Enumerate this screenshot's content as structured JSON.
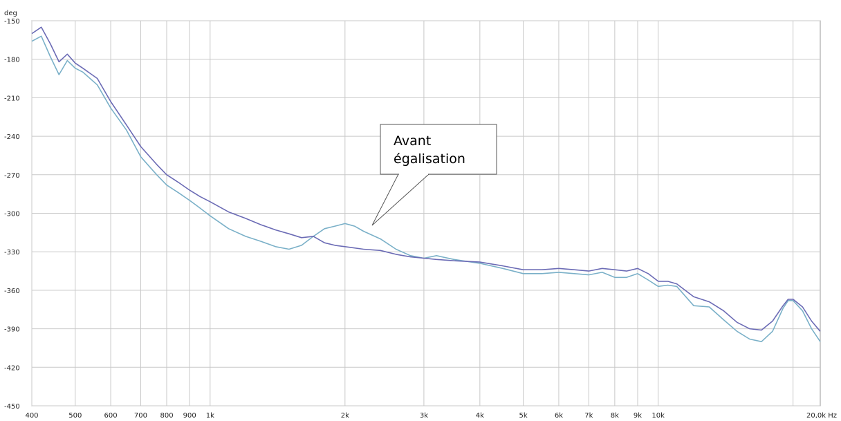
{
  "chart_data": {
    "type": "line",
    "y_unit": "deg",
    "x_scale": "log",
    "xlim": [
      400,
      20000
    ],
    "ylim": [
      -450,
      -150
    ],
    "x_ticks": [
      {
        "value": 400,
        "label": "400"
      },
      {
        "value": 500,
        "label": "500"
      },
      {
        "value": 600,
        "label": "600"
      },
      {
        "value": 700,
        "label": "700"
      },
      {
        "value": 800,
        "label": "800"
      },
      {
        "value": 900,
        "label": "900"
      },
      {
        "value": 1000,
        "label": "1k"
      },
      {
        "value": 2000,
        "label": "2k"
      },
      {
        "value": 3000,
        "label": "3k"
      },
      {
        "value": 4000,
        "label": "4k"
      },
      {
        "value": 5000,
        "label": "5k"
      },
      {
        "value": 6000,
        "label": "6k"
      },
      {
        "value": 7000,
        "label": "7k"
      },
      {
        "value": 8000,
        "label": "8k"
      },
      {
        "value": 9000,
        "label": "9k"
      },
      {
        "value": 10000,
        "label": "10k"
      },
      {
        "value": 20000,
        "label": "20,0k Hz"
      }
    ],
    "y_ticks": [
      {
        "value": -150,
        "label": "-150"
      },
      {
        "value": -180,
        "label": "-180"
      },
      {
        "value": -210,
        "label": "-210"
      },
      {
        "value": -240,
        "label": "-240"
      },
      {
        "value": -270,
        "label": "-270"
      },
      {
        "value": -300,
        "label": "-300"
      },
      {
        "value": -330,
        "label": "-330"
      },
      {
        "value": -360,
        "label": "-360"
      },
      {
        "value": -390,
        "label": "-390"
      },
      {
        "value": -420,
        "label": "-420"
      },
      {
        "value": -450,
        "label": "-450"
      }
    ],
    "grid": true,
    "series": [
      {
        "color": "#6b6bb5",
        "points": [
          [
            400,
            -160
          ],
          [
            420,
            -155
          ],
          [
            440,
            -168
          ],
          [
            460,
            -182
          ],
          [
            480,
            -176
          ],
          [
            500,
            -183
          ],
          [
            520,
            -187
          ],
          [
            560,
            -195
          ],
          [
            600,
            -213
          ],
          [
            650,
            -231
          ],
          [
            700,
            -248
          ],
          [
            760,
            -262
          ],
          [
            800,
            -270
          ],
          [
            850,
            -276
          ],
          [
            900,
            -282
          ],
          [
            950,
            -287
          ],
          [
            1000,
            -291
          ],
          [
            1100,
            -299
          ],
          [
            1200,
            -304
          ],
          [
            1300,
            -309
          ],
          [
            1400,
            -313
          ],
          [
            1500,
            -316
          ],
          [
            1600,
            -319
          ],
          [
            1700,
            -318
          ],
          [
            1800,
            -323
          ],
          [
            1900,
            -325
          ],
          [
            2000,
            -326
          ],
          [
            2200,
            -328
          ],
          [
            2400,
            -329
          ],
          [
            2600,
            -332
          ],
          [
            2800,
            -334
          ],
          [
            3000,
            -335
          ],
          [
            3200,
            -336
          ],
          [
            3500,
            -337
          ],
          [
            4000,
            -338
          ],
          [
            4500,
            -341
          ],
          [
            5000,
            -344
          ],
          [
            5500,
            -344
          ],
          [
            6000,
            -343
          ],
          [
            6500,
            -344
          ],
          [
            7000,
            -345
          ],
          [
            7500,
            -343
          ],
          [
            8000,
            -344
          ],
          [
            8500,
            -345
          ],
          [
            9000,
            -343
          ],
          [
            9500,
            -347
          ],
          [
            10000,
            -353
          ],
          [
            10500,
            -353
          ],
          [
            11000,
            -355
          ],
          [
            12000,
            -365
          ],
          [
            13000,
            -369
          ],
          [
            14000,
            -376
          ],
          [
            15000,
            -385
          ],
          [
            16000,
            -390
          ],
          [
            17000,
            -391
          ],
          [
            18000,
            -384
          ],
          [
            19000,
            -372
          ],
          [
            19500,
            -367
          ],
          [
            20000,
            -367
          ],
          [
            21000,
            -373
          ],
          [
            22000,
            -384
          ],
          [
            23000,
            -392
          ]
        ]
      },
      {
        "color": "#7ab0c8",
        "points": [
          [
            400,
            -166
          ],
          [
            420,
            -162
          ],
          [
            440,
            -178
          ],
          [
            460,
            -192
          ],
          [
            480,
            -181
          ],
          [
            500,
            -187
          ],
          [
            520,
            -190
          ],
          [
            560,
            -200
          ],
          [
            600,
            -218
          ],
          [
            650,
            -235
          ],
          [
            700,
            -256
          ],
          [
            760,
            -270
          ],
          [
            800,
            -278
          ],
          [
            850,
            -284
          ],
          [
            900,
            -290
          ],
          [
            950,
            -296
          ],
          [
            1000,
            -302
          ],
          [
            1100,
            -312
          ],
          [
            1200,
            -318
          ],
          [
            1300,
            -322
          ],
          [
            1400,
            -326
          ],
          [
            1500,
            -328
          ],
          [
            1600,
            -325
          ],
          [
            1700,
            -318
          ],
          [
            1800,
            -312
          ],
          [
            1900,
            -310
          ],
          [
            2000,
            -308
          ],
          [
            2100,
            -310
          ],
          [
            2200,
            -314
          ],
          [
            2400,
            -320
          ],
          [
            2600,
            -328
          ],
          [
            2800,
            -333
          ],
          [
            3000,
            -335
          ],
          [
            3200,
            -333
          ],
          [
            3500,
            -336
          ],
          [
            4000,
            -339
          ],
          [
            4500,
            -343
          ],
          [
            5000,
            -347
          ],
          [
            5500,
            -347
          ],
          [
            6000,
            -346
          ],
          [
            6500,
            -347
          ],
          [
            7000,
            -348
          ],
          [
            7500,
            -346
          ],
          [
            8000,
            -350
          ],
          [
            8500,
            -350
          ],
          [
            9000,
            -347
          ],
          [
            9500,
            -352
          ],
          [
            10000,
            -357
          ],
          [
            10500,
            -356
          ],
          [
            11000,
            -357
          ],
          [
            12000,
            -372
          ],
          [
            13000,
            -373
          ],
          [
            14000,
            -383
          ],
          [
            15000,
            -392
          ],
          [
            16000,
            -398
          ],
          [
            17000,
            -400
          ],
          [
            18000,
            -392
          ],
          [
            19000,
            -374
          ],
          [
            19500,
            -368
          ],
          [
            20000,
            -368
          ],
          [
            21000,
            -376
          ],
          [
            22000,
            -390
          ],
          [
            23000,
            -400
          ]
        ]
      }
    ],
    "annotations": [
      {
        "text_lines": [
          "Avant",
          "égalisation"
        ],
        "points_to": [
          2200,
          -312
        ]
      }
    ]
  }
}
